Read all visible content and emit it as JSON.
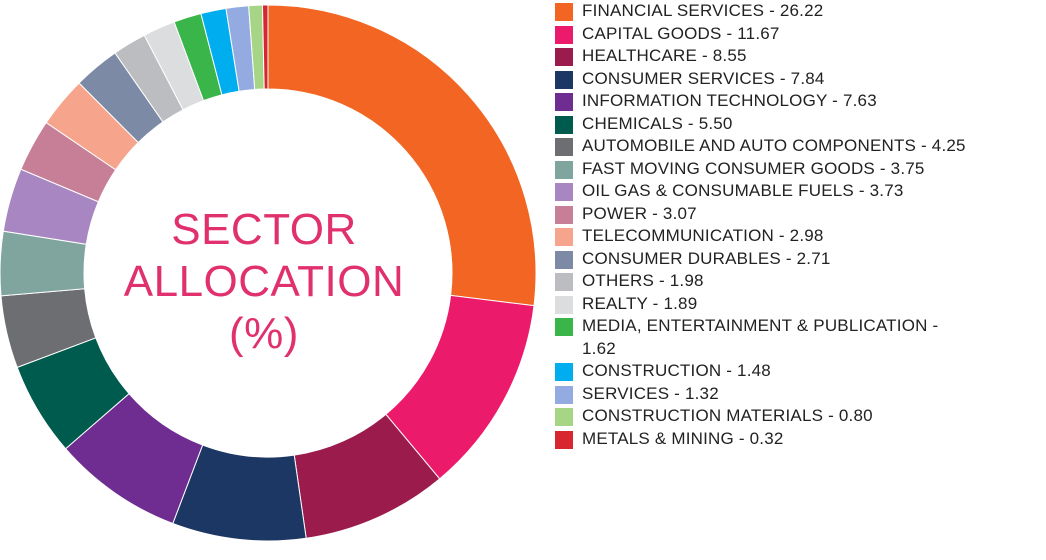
{
  "chart_data": {
    "type": "pie",
    "variant": "donut",
    "title_lines": [
      "SECTOR",
      "ALLOCATION",
      "(%)"
    ],
    "units": "%",
    "legend_position": "right",
    "slices": [
      {
        "name": "FINANCIAL SERVICES",
        "label": "FINANCIAL SERVICES - 26.22",
        "value": 26.22,
        "color": "#f26522"
      },
      {
        "name": "CAPITAL GOODS",
        "label": "CAPITAL GOODS - 11.67",
        "value": 11.67,
        "color": "#ec1a6a"
      },
      {
        "name": "HEALTHCARE",
        "label": "HEALTHCARE - 8.55",
        "value": 8.55,
        "color": "#9b1b4d"
      },
      {
        "name": "CONSUMER SERVICES",
        "label": "CONSUMER SERVICES - 7.84",
        "value": 7.84,
        "color": "#1c3763"
      },
      {
        "name": "INFORMATION TECHNOLOGY",
        "label": "INFORMATION TECHNOLOGY - 7.63",
        "value": 7.63,
        "color": "#6f2c91"
      },
      {
        "name": "CHEMICALS",
        "label": "CHEMICALS - 5.50",
        "value": 5.5,
        "color": "#005b4f"
      },
      {
        "name": "AUTOMOBILE AND AUTO COMPONENTS",
        "label": "AUTOMOBILE AND AUTO COMPONENTS - 4.25",
        "value": 4.25,
        "color": "#6d6e71"
      },
      {
        "name": "FAST MOVING CONSUMER GOODS",
        "label": "FAST MOVING CONSUMER GOODS - 3.75",
        "value": 3.75,
        "color": "#7fa59e"
      },
      {
        "name": "OIL GAS & CONSUMABLE FUELS",
        "label": "OIL GAS & CONSUMABLE FUELS - 3.73",
        "value": 3.73,
        "color": "#a886c2"
      },
      {
        "name": "POWER",
        "label": "POWER - 3.07",
        "value": 3.07,
        "color": "#c77f97"
      },
      {
        "name": "TELECOMMUNICATION",
        "label": "TELECOMMUNICATION - 2.98",
        "value": 2.98,
        "color": "#f6a58c"
      },
      {
        "name": "CONSUMER DURABLES",
        "label": "CONSUMER DURABLES - 2.71",
        "value": 2.71,
        "color": "#7c8aa5"
      },
      {
        "name": "OTHERS",
        "label": "OTHERS - 1.98",
        "value": 1.98,
        "color": "#bcbdc0"
      },
      {
        "name": "REALTY",
        "label": "REALTY - 1.89",
        "value": 1.89,
        "color": "#dcdddf"
      },
      {
        "name": "MEDIA, ENTERTAINMENT & PUBLICATION",
        "label": "MEDIA, ENTERTAINMENT & PUBLICATION - 1.62",
        "value": 1.62,
        "color": "#39b54a"
      },
      {
        "name": "CONSTRUCTION",
        "label": "CONSTRUCTION - 1.48",
        "value": 1.48,
        "color": "#00aeef"
      },
      {
        "name": "SERVICES",
        "label": "SERVICES - 1.32",
        "value": 1.32,
        "color": "#93abe0"
      },
      {
        "name": "CONSTRUCTION MATERIALS",
        "label": "CONSTRUCTION MATERIALS - 0.80",
        "value": 0.8,
        "color": "#a6d685"
      },
      {
        "name": "METALS & MINING",
        "label": "METALS & MINING - 0.32",
        "value": 0.32,
        "color": "#d7262e"
      }
    ]
  }
}
